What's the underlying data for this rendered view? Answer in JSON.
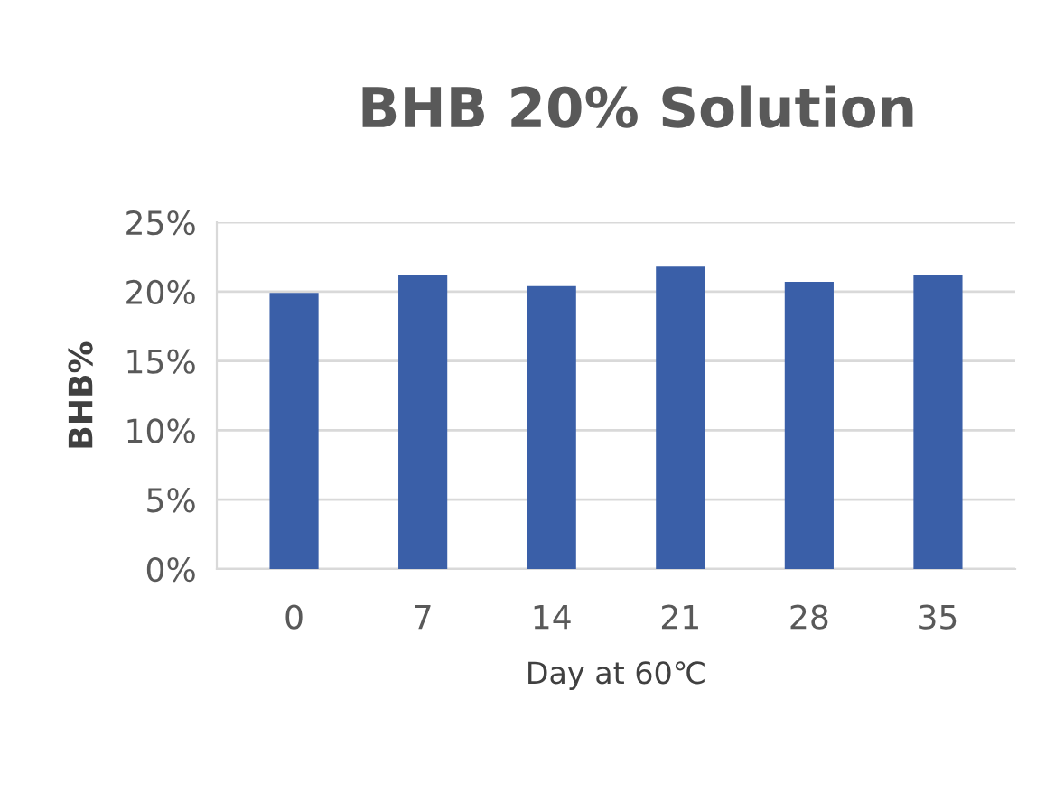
{
  "chart_data": {
    "type": "bar",
    "title": "BHB 20% Solution",
    "xlabel": "Day at 60℃",
    "ylabel": "BHB%",
    "categories": [
      "0",
      "7",
      "14",
      "21",
      "28",
      "35"
    ],
    "values": [
      19.9,
      21.2,
      20.4,
      21.8,
      20.7,
      21.2
    ],
    "color": "#3a5fa8",
    "ylim": [
      0,
      25
    ],
    "yticks": [
      {
        "value": 0,
        "label": "0%"
      },
      {
        "value": 5,
        "label": "5%"
      },
      {
        "value": 10,
        "label": "10%"
      },
      {
        "value": 15,
        "label": "15%"
      },
      {
        "value": 20,
        "label": "20%"
      },
      {
        "value": 25,
        "label": "25%"
      }
    ],
    "grid": "y",
    "legend": false
  }
}
